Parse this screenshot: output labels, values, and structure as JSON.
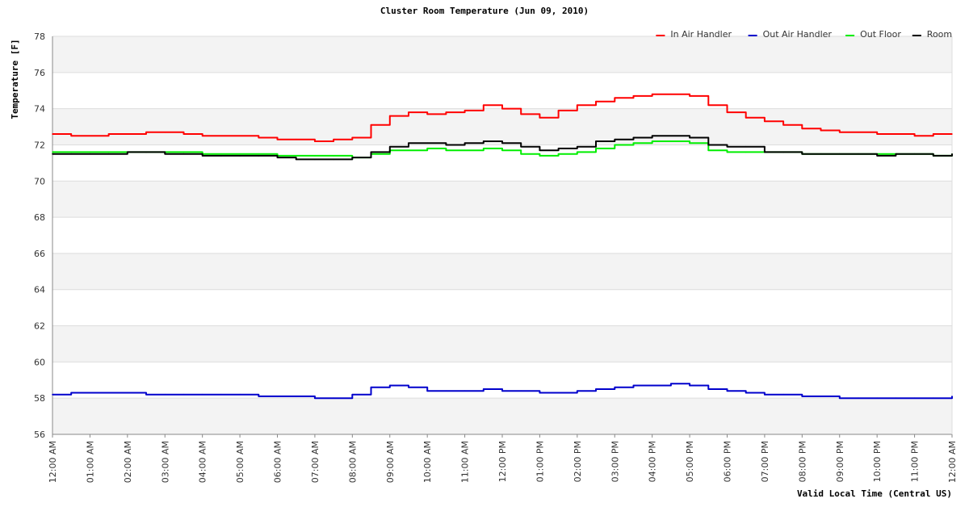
{
  "chart_data": {
    "type": "line",
    "title": "Cluster Room Temperature (Jun 09, 2010)",
    "xlabel": "Valid Local Time (Central US)",
    "ylabel": "Temperature [F]",
    "ylim": [
      56,
      78
    ],
    "yticks": [
      56,
      58,
      60,
      62,
      64,
      66,
      68,
      70,
      72,
      74,
      76,
      78
    ],
    "xlim": [
      0,
      24
    ],
    "xticks": [
      {
        "hour": 0,
        "label": "12:00 AM"
      },
      {
        "hour": 1,
        "label": "01:00 AM"
      },
      {
        "hour": 2,
        "label": "02:00 AM"
      },
      {
        "hour": 3,
        "label": "03:00 AM"
      },
      {
        "hour": 4,
        "label": "04:00 AM"
      },
      {
        "hour": 5,
        "label": "05:00 AM"
      },
      {
        "hour": 6,
        "label": "06:00 AM"
      },
      {
        "hour": 7,
        "label": "07:00 AM"
      },
      {
        "hour": 8,
        "label": "08:00 AM"
      },
      {
        "hour": 9,
        "label": "09:00 AM"
      },
      {
        "hour": 10,
        "label": "10:00 AM"
      },
      {
        "hour": 11,
        "label": "11:00 AM"
      },
      {
        "hour": 12,
        "label": "12:00 PM"
      },
      {
        "hour": 13,
        "label": "01:00 PM"
      },
      {
        "hour": 14,
        "label": "02:00 PM"
      },
      {
        "hour": 15,
        "label": "03:00 PM"
      },
      {
        "hour": 16,
        "label": "04:00 PM"
      },
      {
        "hour": 17,
        "label": "05:00 PM"
      },
      {
        "hour": 18,
        "label": "06:00 PM"
      },
      {
        "hour": 19,
        "label": "07:00 PM"
      },
      {
        "hour": 20,
        "label": "08:00 PM"
      },
      {
        "hour": 21,
        "label": "09:00 PM"
      },
      {
        "hour": 22,
        "label": "10:00 PM"
      },
      {
        "hour": 23,
        "label": "11:00 PM"
      },
      {
        "hour": 24,
        "label": "12:00 AM"
      }
    ],
    "grid": true,
    "legend_position": "top-right",
    "series": [
      {
        "name": "In Air Handler",
        "color": "#ff0000",
        "x": [
          0,
          0.5,
          1,
          1.5,
          2,
          2.5,
          3,
          3.5,
          4,
          4.5,
          5,
          5.5,
          6,
          6.5,
          7,
          7.5,
          8,
          8.5,
          9,
          9.5,
          10,
          10.5,
          11,
          11.5,
          12,
          12.5,
          13,
          13.5,
          14,
          14.5,
          15,
          15.5,
          16,
          16.5,
          17,
          17.5,
          18,
          18.5,
          19,
          19.5,
          20,
          20.5,
          21,
          21.5,
          22,
          22.5,
          23,
          23.5,
          24
        ],
        "values": [
          72.6,
          72.5,
          72.5,
          72.6,
          72.6,
          72.7,
          72.7,
          72.6,
          72.5,
          72.5,
          72.5,
          72.4,
          72.3,
          72.3,
          72.2,
          72.3,
          72.4,
          73.1,
          73.6,
          73.8,
          73.7,
          73.8,
          73.9,
          74.2,
          74.0,
          73.7,
          73.5,
          73.9,
          74.2,
          74.4,
          74.6,
          74.7,
          74.8,
          74.8,
          74.7,
          74.2,
          73.8,
          73.5,
          73.3,
          73.1,
          72.9,
          72.8,
          72.7,
          72.7,
          72.6,
          72.6,
          72.5,
          72.6,
          72.6
        ]
      },
      {
        "name": "Out Air Handler",
        "color": "#0000cc",
        "x": [
          0,
          0.5,
          1,
          1.5,
          2,
          2.5,
          3,
          3.5,
          4,
          4.5,
          5,
          5.5,
          6,
          6.5,
          7,
          7.5,
          8,
          8.5,
          9,
          9.5,
          10,
          10.5,
          11,
          11.5,
          12,
          12.5,
          13,
          13.5,
          14,
          14.5,
          15,
          15.5,
          16,
          16.5,
          17,
          17.5,
          18,
          18.5,
          19,
          19.5,
          20,
          20.5,
          21,
          21.5,
          22,
          22.5,
          23,
          23.5,
          24
        ],
        "values": [
          58.2,
          58.3,
          58.3,
          58.3,
          58.3,
          58.2,
          58.2,
          58.2,
          58.2,
          58.2,
          58.2,
          58.1,
          58.1,
          58.1,
          58.0,
          58.0,
          58.2,
          58.6,
          58.7,
          58.6,
          58.4,
          58.4,
          58.4,
          58.5,
          58.4,
          58.4,
          58.3,
          58.3,
          58.4,
          58.5,
          58.6,
          58.7,
          58.7,
          58.8,
          58.7,
          58.5,
          58.4,
          58.3,
          58.2,
          58.2,
          58.1,
          58.1,
          58.0,
          58.0,
          58.0,
          58.0,
          58.0,
          58.0,
          58.1
        ]
      },
      {
        "name": "Out Floor",
        "color": "#00ee00",
        "x": [
          0,
          0.5,
          1,
          1.5,
          2,
          2.5,
          3,
          3.5,
          4,
          4.5,
          5,
          5.5,
          6,
          6.5,
          7,
          7.5,
          8,
          8.5,
          9,
          9.5,
          10,
          10.5,
          11,
          11.5,
          12,
          12.5,
          13,
          13.5,
          14,
          14.5,
          15,
          15.5,
          16,
          16.5,
          17,
          17.5,
          18,
          18.5,
          19,
          19.5,
          20,
          20.5,
          21,
          21.5,
          22,
          22.5,
          23,
          23.5,
          24
        ],
        "values": [
          71.6,
          71.6,
          71.6,
          71.6,
          71.6,
          71.6,
          71.6,
          71.6,
          71.5,
          71.5,
          71.5,
          71.5,
          71.4,
          71.4,
          71.4,
          71.4,
          71.3,
          71.5,
          71.7,
          71.7,
          71.8,
          71.7,
          71.7,
          71.8,
          71.7,
          71.5,
          71.4,
          71.5,
          71.6,
          71.8,
          72.0,
          72.1,
          72.2,
          72.2,
          72.1,
          71.7,
          71.6,
          71.6,
          71.6,
          71.6,
          71.5,
          71.5,
          71.5,
          71.5,
          71.5,
          71.5,
          71.5,
          71.4,
          71.5
        ]
      },
      {
        "name": "Room",
        "color": "#000000",
        "x": [
          0,
          0.5,
          1,
          1.5,
          2,
          2.5,
          3,
          3.5,
          4,
          4.5,
          5,
          5.5,
          6,
          6.5,
          7,
          7.5,
          8,
          8.5,
          9,
          9.5,
          10,
          10.5,
          11,
          11.5,
          12,
          12.5,
          13,
          13.5,
          14,
          14.5,
          15,
          15.5,
          16,
          16.5,
          17,
          17.5,
          18,
          18.5,
          19,
          19.5,
          20,
          20.5,
          21,
          21.5,
          22,
          22.5,
          23,
          23.5,
          24
        ],
        "values": [
          71.5,
          71.5,
          71.5,
          71.5,
          71.6,
          71.6,
          71.5,
          71.5,
          71.4,
          71.4,
          71.4,
          71.4,
          71.3,
          71.2,
          71.2,
          71.2,
          71.3,
          71.6,
          71.9,
          72.1,
          72.1,
          72.0,
          72.1,
          72.2,
          72.1,
          71.9,
          71.7,
          71.8,
          71.9,
          72.2,
          72.3,
          72.4,
          72.5,
          72.5,
          72.4,
          72.0,
          71.9,
          71.9,
          71.6,
          71.6,
          71.5,
          71.5,
          71.5,
          71.5,
          71.4,
          71.5,
          71.5,
          71.4,
          71.5
        ]
      }
    ]
  }
}
